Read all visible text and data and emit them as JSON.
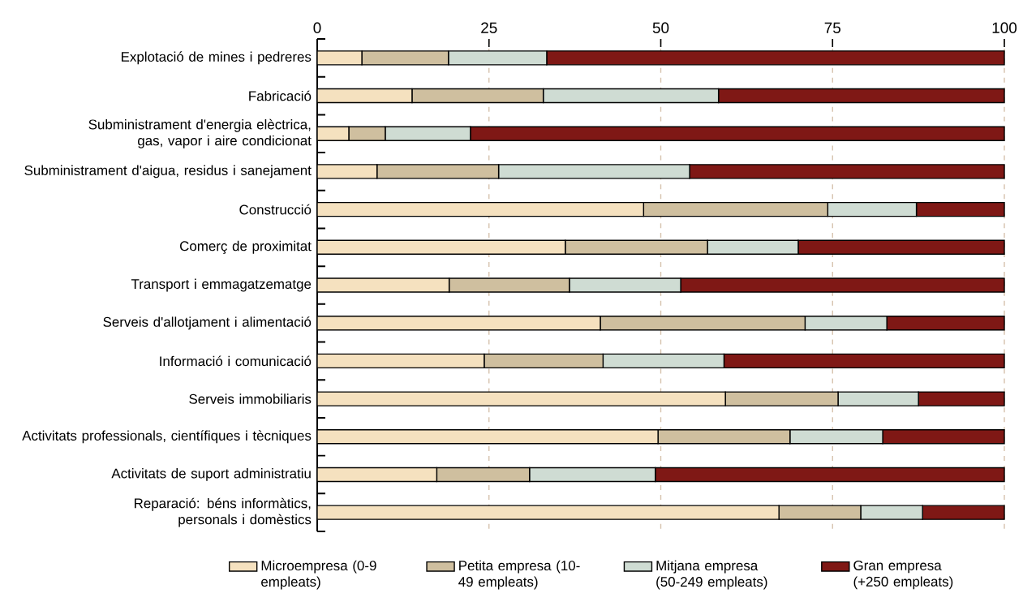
{
  "chart_data": {
    "type": "bar",
    "orientation": "horizontal",
    "stacked": true,
    "categories": [
      "Explotació de mines i pedreres",
      "Fabricació",
      "Subministrament d'energia elèctrica, gas, vapor i aire condicionat",
      "Subministrament d'aigua, residus i sanejament",
      "Construcció",
      "Comerç de proximitat",
      "Transport i emmagatzematge",
      "Serveis d'allotjament i alimentació",
      "Informació i comunicació",
      "Serveis immobiliaris",
      "Activitats professionals, científiques i tècniques",
      "Activitats de suport administratiu",
      "Reparació: béns informàtics, personals i domèstics"
    ],
    "series": [
      {
        "name": "Microempresa (0-9 empleats)",
        "color": "#f5e1bf",
        "values": [
          6.5,
          13.8,
          4.6,
          8.7,
          47.5,
          36.1,
          19.2,
          41.2,
          24.3,
          59.4,
          49.6,
          17.4,
          67.2
        ]
      },
      {
        "name": "Petita empresa (10-49 empleats)",
        "color": "#cfbf9f",
        "values": [
          12.6,
          19.1,
          5.3,
          17.7,
          26.8,
          20.7,
          17.5,
          29.8,
          17.3,
          16.4,
          19.2,
          13.5,
          11.9
        ]
      },
      {
        "name": "Mitjana empresa (50-249 empleats)",
        "color": "#cfdcd3",
        "values": [
          14.3,
          25.5,
          12.4,
          27.8,
          12.9,
          13.2,
          16.2,
          11.9,
          17.6,
          11.7,
          13.5,
          18.3,
          9.0
        ]
      },
      {
        "name": "Gran empresa (+250 empleats)",
        "color": "#7f1815",
        "values": [
          66.6,
          41.6,
          77.7,
          45.8,
          12.8,
          30.0,
          47.1,
          17.1,
          40.8,
          12.5,
          17.7,
          50.8,
          11.9
        ]
      }
    ],
    "xlim": [
      0,
      100
    ],
    "xticks": [
      0,
      25,
      50,
      75,
      100
    ],
    "grid": "x",
    "legend": "bottom"
  }
}
